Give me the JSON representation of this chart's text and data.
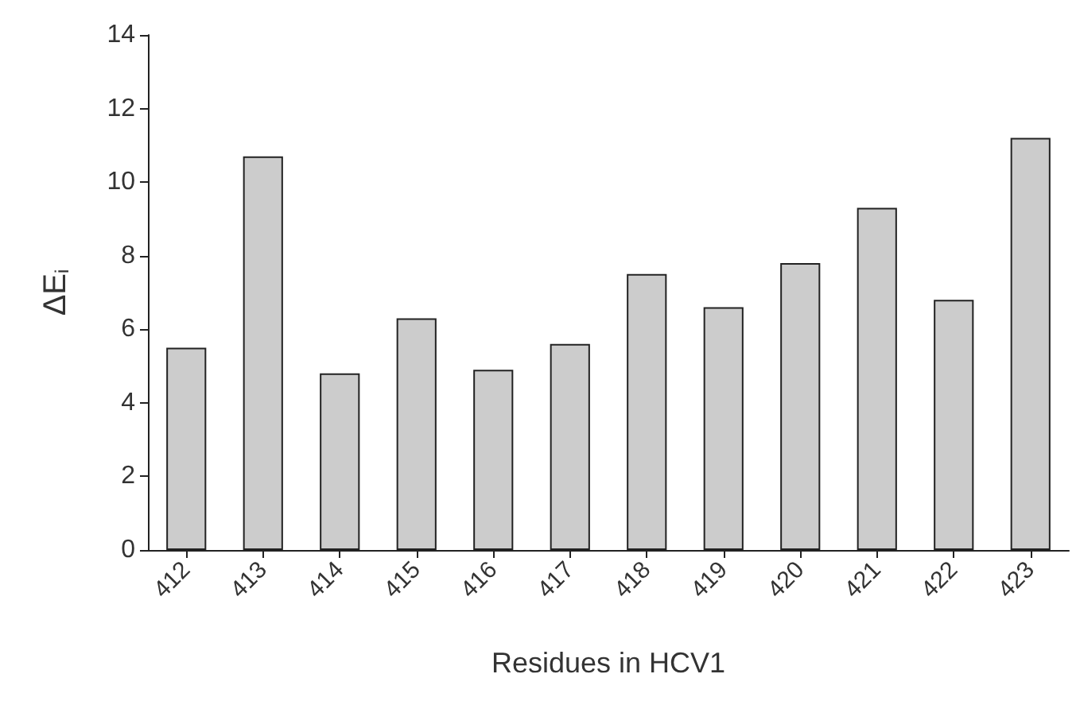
{
  "chart_data": {
    "type": "bar",
    "xlabel": "Residues in HCV1",
    "ylabel": "ΔE$_{i}$",
    "categories": [
      "412",
      "413",
      "414",
      "415",
      "416",
      "417",
      "418",
      "419",
      "420",
      "421",
      "422",
      "423"
    ],
    "values": [
      5.5,
      10.7,
      4.8,
      6.3,
      4.9,
      5.6,
      7.5,
      6.6,
      7.8,
      9.3,
      6.8,
      11.2
    ],
    "color": "#cccccc",
    "ylim": [
      0,
      14
    ],
    "yticks": [
      0,
      2,
      4,
      6,
      8,
      10,
      12,
      14
    ]
  }
}
